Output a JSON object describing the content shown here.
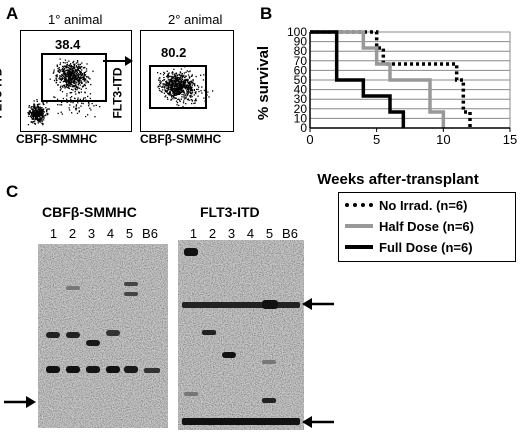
{
  "panel_a": {
    "letter": "A",
    "primary_label": "1° animal",
    "secondary_label": "2° animal",
    "y_label": "FLT3-ITD",
    "x_label": "CBFβ-SMMHC",
    "gate1_pct": "38.4",
    "gate2_pct": "80.2"
  },
  "panel_b": {
    "letter": "B",
    "legend": [
      "No Irrad. (n=6)",
      "Half Dose (n=6)",
      "Full Dose (n=6)"
    ]
  },
  "chart_data": {
    "type": "line",
    "step": true,
    "xlabel": "Weeks after-transplant",
    "ylabel": "% survival",
    "xlim": [
      0,
      15
    ],
    "ylim": [
      0,
      100
    ],
    "xticks": [
      0,
      5,
      10,
      15
    ],
    "yticks": [
      0,
      10,
      20,
      30,
      40,
      50,
      60,
      70,
      80,
      90,
      100
    ],
    "grid": true,
    "series": [
      {
        "name": "No Irrad. (n=6)",
        "color": "#000000",
        "dash": "dotted",
        "x": [
          0,
          5,
          5.5,
          11,
          11.5,
          12
        ],
        "y": [
          100,
          83.3,
          66.7,
          50,
          16.7,
          0
        ]
      },
      {
        "name": "Half Dose (n=6)",
        "color": "#999999",
        "dash": "solid",
        "x": [
          0,
          4,
          5,
          6,
          9,
          10
        ],
        "y": [
          100,
          83.3,
          66.7,
          50,
          16.7,
          0
        ]
      },
      {
        "name": "Full Dose (n=6)",
        "color": "#000000",
        "dash": "solid",
        "x": [
          0,
          2,
          4,
          6,
          7
        ],
        "y": [
          100,
          50,
          33.3,
          16.7,
          0
        ]
      }
    ]
  },
  "panel_c": {
    "letter": "C",
    "blot1_title": "CBFβ-SMMHC",
    "blot2_title": "FLT3-ITD",
    "lanes": [
      "1",
      "2",
      "3",
      "4",
      "5",
      "B6"
    ]
  }
}
